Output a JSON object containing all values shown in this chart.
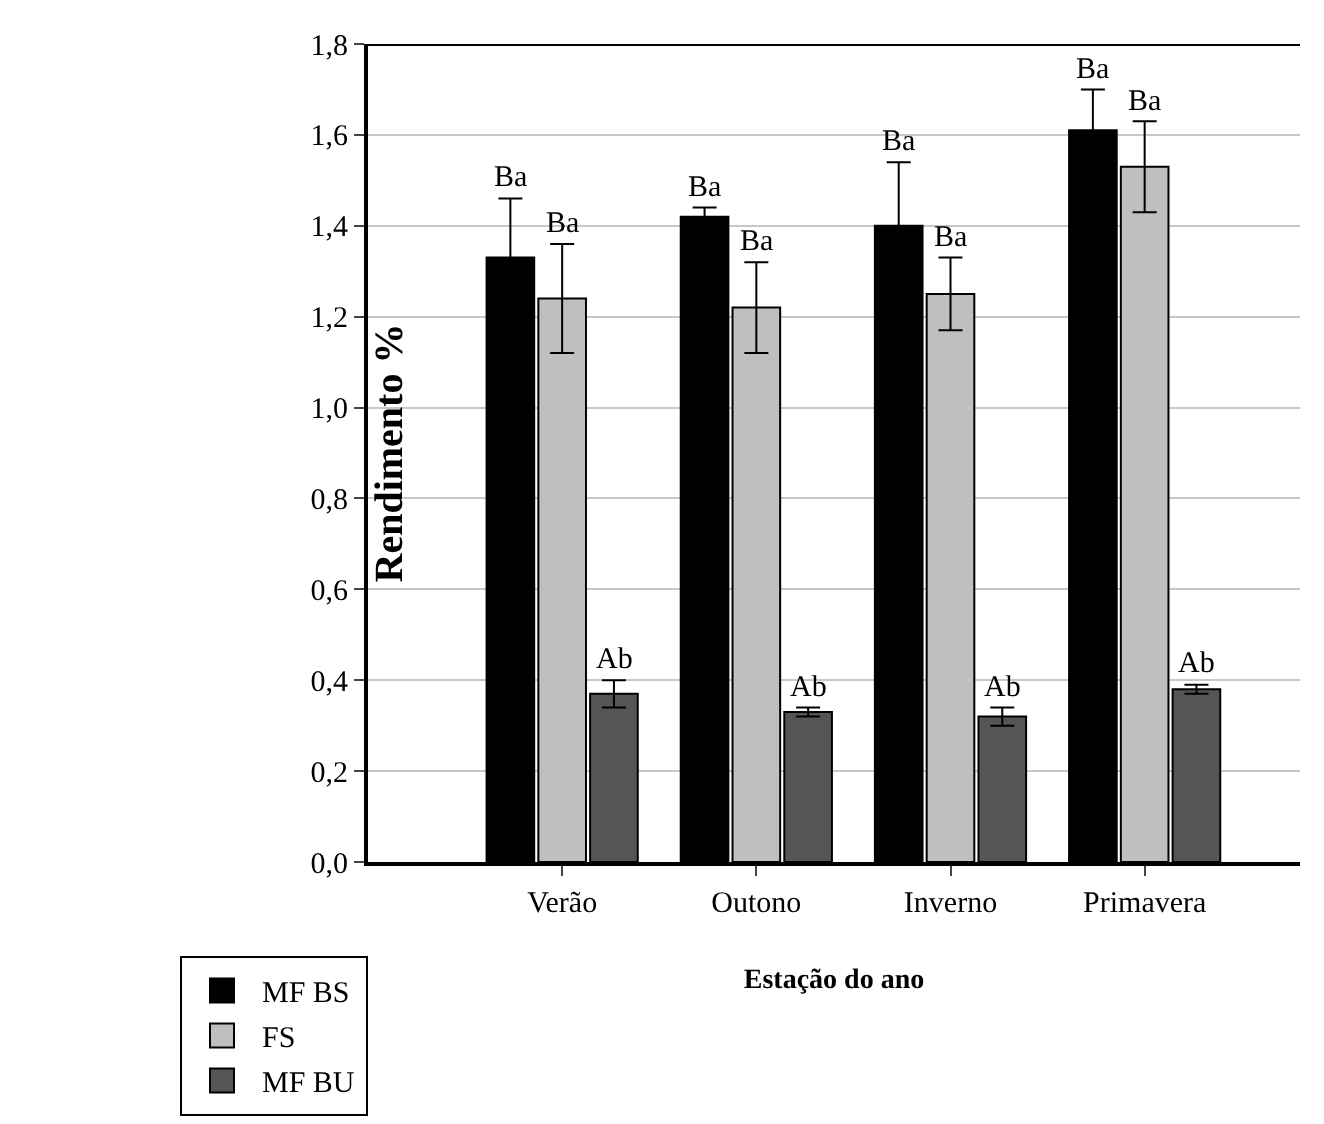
{
  "chart_data": {
    "type": "bar",
    "xlabel": "Estação do ano",
    "ylabel": "Rendimento %",
    "categories": [
      "Verão",
      "Outono",
      "Inverno",
      "Primavera"
    ],
    "series": [
      {
        "name": "MF BS",
        "color": "#000000",
        "values": [
          1.33,
          1.42,
          1.4,
          1.61
        ],
        "errors": [
          0.13,
          0.02,
          0.14,
          0.09
        ],
        "value_labels": [
          "Ba",
          "Ba",
          "Ba",
          "Ba"
        ]
      },
      {
        "name": "FS",
        "color": "#bfbfbf",
        "values": [
          1.24,
          1.22,
          1.25,
          1.53
        ],
        "errors": [
          0.12,
          0.1,
          0.08,
          0.1
        ],
        "value_labels": [
          "Ba",
          "Ba",
          "Ba",
          "Ba"
        ]
      },
      {
        "name": "MF BU",
        "color": "#555555",
        "values": [
          0.37,
          0.33,
          0.32,
          0.38
        ],
        "errors": [
          0.03,
          0.01,
          0.02,
          0.01
        ],
        "value_labels": [
          "Ab",
          "Ab",
          "Ab",
          "Ab"
        ]
      }
    ],
    "ylim": [
      0,
      1.8
    ],
    "yticks": [
      {
        "value": 0,
        "label": "0,0"
      },
      {
        "value": 0.2,
        "label": "0,2"
      },
      {
        "value": 0.4,
        "label": "0,4"
      },
      {
        "value": 0.6,
        "label": "0,6"
      },
      {
        "value": 0.8,
        "label": "0,8"
      },
      {
        "value": 1,
        "label": "1,0"
      },
      {
        "value": 1.2,
        "label": "1,2"
      },
      {
        "value": 1.4,
        "label": "1,4"
      },
      {
        "value": 1.6,
        "label": "1,6"
      },
      {
        "value": 1.8,
        "label": "1,8"
      }
    ],
    "grid": "y",
    "legend": "bottom left"
  }
}
